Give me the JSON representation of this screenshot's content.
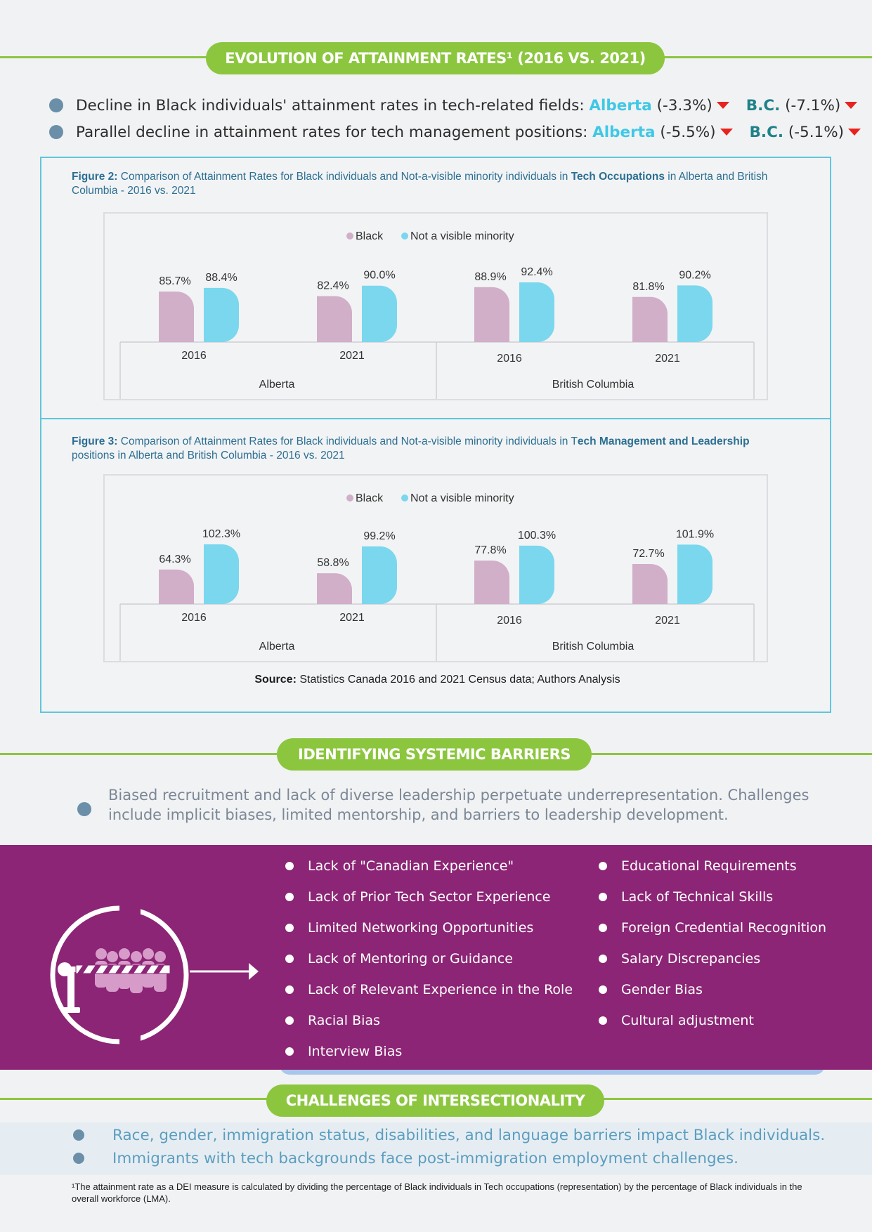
{
  "sections": {
    "evolution_title": "EVOLUTION OF ATTAINMENT RATES¹ (2016 VS. 2021)",
    "barriers_title": "IDENTIFYING SYSTEMIC BARRIERS",
    "intersect_title": "CHALLENGES OF INTERSECTIONALITY"
  },
  "summary": [
    {
      "text": "Decline in Black individuals' attainment rates in tech-related fields:",
      "ab_label": "Alberta",
      "ab_value": "(-3.3%)",
      "bc_label": "B.C.",
      "bc_value": "(-7.1%)"
    },
    {
      "text": "Parallel decline in attainment rates for tech management positions:",
      "ab_label": "Alberta",
      "ab_value": "(-5.5%)",
      "bc_label": "B.C.",
      "bc_value": "(-5.1%)"
    }
  ],
  "figures": {
    "fig2": {
      "caption_lead": "Figure 2:",
      "caption_text": "Comparison of Attainment Rates for Black individuals and Not-a-visible minority individuals in",
      "caption_bold": "Tech Occupations",
      "caption_tail": "in Alberta and British Columbia - 2016 vs. 2021"
    },
    "fig3": {
      "caption_lead": "Figure 3:",
      "caption_text": "Comparison of Attainment Rates for Black individuals and Not-a-visible minority individuals in T",
      "caption_bold": "ech Management and Leadership",
      "caption_tail": "positions in Alberta and British Columbia - 2016 vs. 2021"
    }
  },
  "chart_data": [
    {
      "type": "bar",
      "legend": [
        "Black",
        "Not a visible minority"
      ],
      "groups": [
        "Alberta",
        "British Columbia"
      ],
      "categories": [
        "2016",
        "2021",
        "2016",
        "2021"
      ],
      "series": [
        {
          "name": "Black",
          "values": [
            85.7,
            82.4,
            88.9,
            81.8
          ],
          "labels": [
            "85.7%",
            "82.4%",
            "88.9%",
            "81.8%"
          ]
        },
        {
          "name": "Not a visible minority",
          "values": [
            88.4,
            90.0,
            92.4,
            90.2
          ],
          "labels": [
            "88.4%",
            "90.0%",
            "92.4%",
            "90.2%"
          ]
        }
      ],
      "colors": {
        "Black": "#d1afc8",
        "Not a visible minority": "#7ad7ee"
      }
    },
    {
      "type": "bar",
      "legend": [
        "Black",
        "Not a visible minority"
      ],
      "groups": [
        "Alberta",
        "British Columbia"
      ],
      "categories": [
        "2016",
        "2021",
        "2016",
        "2021"
      ],
      "series": [
        {
          "name": "Black",
          "values": [
            64.3,
            58.8,
            77.8,
            72.7
          ],
          "labels": [
            "64.3%",
            "58.8%",
            "77.8%",
            "72.7%"
          ]
        },
        {
          "name": "Not a visible minority",
          "values": [
            102.3,
            99.2,
            100.3,
            101.9
          ],
          "labels": [
            "102.3%",
            "99.2%",
            "100.3%",
            "101.9%"
          ]
        }
      ],
      "colors": {
        "Black": "#d1afc8",
        "Not a visible minority": "#7ad7ee"
      }
    }
  ],
  "source": {
    "lead": "Source:",
    "text": "Statistics Canada 2016 and 2021 Census data; Authors Analysis"
  },
  "barriers": {
    "intro": "Biased recruitment and lack of diverse leadership perpetuate underrepresentation. Challenges include implicit biases, limited mentorship, and barriers to leadership development.",
    "left": [
      "Lack of \"Canadian Experience\"",
      "Lack of Prior Tech Sector Experience",
      "Limited Networking Opportunities",
      "Lack of Mentoring or Guidance",
      "Lack of Relevant Experience in the Role",
      "Racial Bias",
      "Interview Bias"
    ],
    "right": [
      "Educational Requirements",
      "Lack of Technical Skills",
      "Foreign Credential Recognition",
      "Salary Discrepancies",
      "Gender Bias",
      "Cultural adjustment"
    ],
    "icon": "barrier-gate-people-icon"
  },
  "intersectionality": [
    "Race, gender, immigration status, disabilities, and language barriers impact Black individuals.",
    "Immigrants with tech backgrounds face post-immigration employment challenges."
  ],
  "footnote": "¹The attainment rate as a DEI measure is calculated by dividing the percentage of Black individuals in Tech occupations (representation) by the percentage of Black individuals in the overall workforce (LMA)."
}
